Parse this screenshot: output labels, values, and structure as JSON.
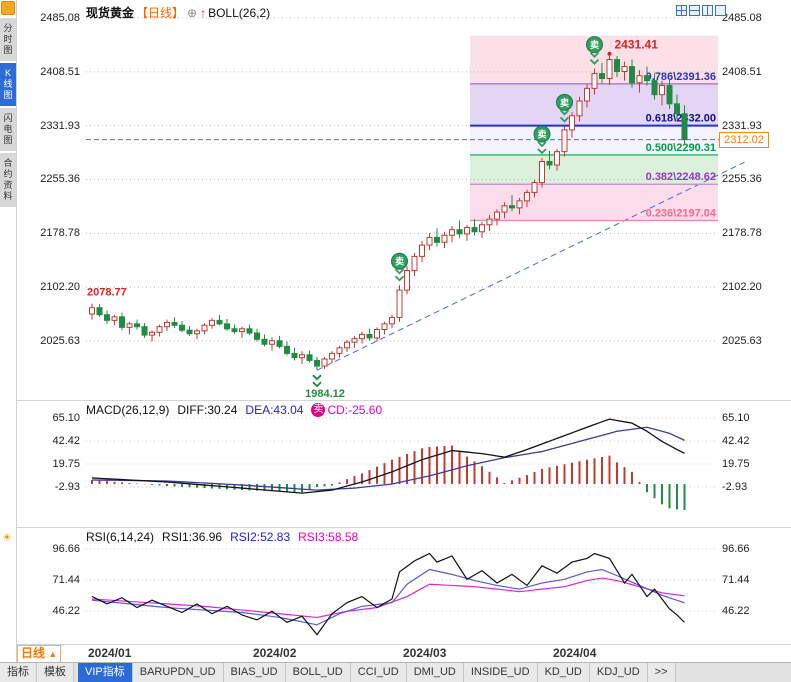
{
  "icons": {
    "add": "⊕",
    "flag": "↑",
    "sun": "☀",
    "triangle_up": "▲"
  },
  "sidebar": {
    "tabs": [
      {
        "label": "分时图",
        "active": false
      },
      {
        "label": "K线图",
        "active": true
      },
      {
        "label": "闪电图",
        "active": false
      },
      {
        "label": "合约资料",
        "active": false
      }
    ]
  },
  "header": {
    "symbol": "现货黄金",
    "period": "【日线】",
    "indicator": "BOLL(26,2)"
  },
  "footer": {
    "period_label": "日线",
    "tools": [
      "指标",
      "模板"
    ],
    "indicator_tabs": [
      {
        "label": "VIP指标",
        "active": true
      },
      {
        "label": "BARUPDN_UD",
        "active": false
      },
      {
        "label": "BIAS_UD",
        "active": false
      },
      {
        "label": "BOLL_UD",
        "active": false
      },
      {
        "label": "CCI_UD",
        "active": false
      },
      {
        "label": "DMI_UD",
        "active": false
      },
      {
        "label": "INSIDE_UD",
        "active": false
      },
      {
        "label": "KD_UD",
        "active": false
      },
      {
        "label": "KDJ_UD",
        "active": false
      }
    ],
    "more": ">>"
  },
  "chart_data": [
    {
      "type": "candlestick",
      "panel": "main",
      "symbol": "现货黄金",
      "period": "日线",
      "overlay": "BOLL(26,2)",
      "y_ticks": [
        2485.08,
        2408.51,
        2331.93,
        2255.36,
        2178.78,
        2102.2,
        2025.63
      ],
      "x_labels": [
        "2024/01",
        "2024/02",
        "2024/03",
        "2024/04"
      ],
      "month_start_indices": [
        0,
        22,
        42,
        62
      ],
      "candle_format": "[open,high,low,close]",
      "candles": [
        [
          2064,
          2078.77,
          2056,
          2073
        ],
        [
          2073,
          2078,
          2060,
          2063
        ],
        [
          2063,
          2069,
          2050,
          2055
        ],
        [
          2055,
          2063,
          2048,
          2060
        ],
        [
          2060,
          2066,
          2041,
          2045
        ],
        [
          2045,
          2053,
          2035,
          2050
        ],
        [
          2050,
          2056,
          2042,
          2046
        ],
        [
          2046,
          2051,
          2030,
          2034
        ],
        [
          2034,
          2041,
          2025,
          2038
        ],
        [
          2038,
          2049,
          2032,
          2046
        ],
        [
          2046,
          2056,
          2040,
          2052
        ],
        [
          2052,
          2059,
          2044,
          2048
        ],
        [
          2048,
          2054,
          2038,
          2041
        ],
        [
          2041,
          2047,
          2033,
          2036
        ],
        [
          2036,
          2043,
          2028,
          2040
        ],
        [
          2040,
          2051,
          2035,
          2048
        ],
        [
          2048,
          2058,
          2043,
          2055
        ],
        [
          2055,
          2063,
          2048,
          2050
        ],
        [
          2050,
          2057,
          2040,
          2043
        ],
        [
          2043,
          2049,
          2036,
          2039
        ],
        [
          2039,
          2046,
          2030,
          2043
        ],
        [
          2043,
          2049,
          2034,
          2037
        ],
        [
          2037,
          2043,
          2025,
          2028
        ],
        [
          2028,
          2035,
          2018,
          2021
        ],
        [
          2021,
          2031,
          2012,
          2026
        ],
        [
          2026,
          2033,
          2015,
          2018
        ],
        [
          2018,
          2025,
          2005,
          2008
        ],
        [
          2008,
          2016,
          1998,
          2002
        ],
        [
          2002,
          2011,
          1993,
          2006
        ],
        [
          2006,
          2012,
          1995,
          1998
        ],
        [
          1998,
          2003,
          1984.12,
          1990
        ],
        [
          1990,
          2003,
          1986,
          2000
        ],
        [
          2000,
          2011,
          1994,
          2008
        ],
        [
          2008,
          2019,
          2002,
          2016
        ],
        [
          2016,
          2027,
          2010,
          2024
        ],
        [
          2024,
          2033,
          2016,
          2029
        ],
        [
          2029,
          2039,
          2022,
          2035
        ],
        [
          2035,
          2043,
          2026,
          2030
        ],
        [
          2030,
          2045,
          2025,
          2042
        ],
        [
          2042,
          2053,
          2035,
          2050
        ],
        [
          2050,
          2063,
          2044,
          2059
        ],
        [
          2059,
          2105,
          2053,
          2098
        ],
        [
          2098,
          2132,
          2092,
          2126
        ],
        [
          2126,
          2151,
          2118,
          2146
        ],
        [
          2146,
          2168,
          2138,
          2162
        ],
        [
          2162,
          2179,
          2155,
          2173
        ],
        [
          2173,
          2186,
          2160,
          2166
        ],
        [
          2166,
          2181,
          2158,
          2176
        ],
        [
          2176,
          2189,
          2166,
          2184
        ],
        [
          2184,
          2197,
          2172,
          2178
        ],
        [
          2178,
          2191,
          2168,
          2187
        ],
        [
          2187,
          2199,
          2176,
          2181
        ],
        [
          2181,
          2195,
          2172,
          2191
        ],
        [
          2191,
          2205,
          2182,
          2199
        ],
        [
          2199,
          2213,
          2190,
          2209
        ],
        [
          2209,
          2223,
          2200,
          2218
        ],
        [
          2218,
          2233,
          2210,
          2215
        ],
        [
          2215,
          2229,
          2206,
          2225
        ],
        [
          2225,
          2241,
          2216,
          2237
        ],
        [
          2237,
          2255,
          2230,
          2251
        ],
        [
          2251,
          2286,
          2244,
          2281
        ],
        [
          2281,
          2296,
          2270,
          2276
        ],
        [
          2276,
          2299,
          2268,
          2295
        ],
        [
          2295,
          2331,
          2288,
          2326
        ],
        [
          2326,
          2351,
          2315,
          2346
        ],
        [
          2346,
          2373,
          2338,
          2367
        ],
        [
          2367,
          2391,
          2358,
          2385
        ],
        [
          2385,
          2413,
          2376,
          2406
        ],
        [
          2406,
          2421,
          2392,
          2399
        ],
        [
          2399,
          2431.41,
          2390,
          2426
        ],
        [
          2426,
          2431,
          2401,
          2409
        ],
        [
          2409,
          2423,
          2396,
          2416
        ],
        [
          2416,
          2426,
          2386,
          2393
        ],
        [
          2393,
          2411,
          2379,
          2403
        ],
        [
          2403,
          2416,
          2389,
          2396
        ],
        [
          2396,
          2406,
          2369,
          2376
        ],
        [
          2376,
          2396,
          2361,
          2389
        ],
        [
          2389,
          2399,
          2356,
          2363
        ],
        [
          2363,
          2376,
          2341,
          2349
        ],
        [
          2349,
          2361,
          2306,
          2312.02
        ]
      ],
      "sell_signal_indices": [
        41,
        60,
        63,
        67
      ],
      "sell_badge_char": "卖",
      "annotations": {
        "high": {
          "index": 69,
          "price": 2431.41
        },
        "low": {
          "index": 30,
          "price": 1984.12
        },
        "early_high": {
          "index": 0,
          "price": 2078.77
        },
        "current_price": 2312.02,
        "current_price_label": "2312.02"
      },
      "fib_top_price": 2460,
      "fib_levels": [
        {
          "ratio": "0.786",
          "price": 2391.36,
          "label": "0.786\\2391.36",
          "label_color": "#2a35b0",
          "line_color": "#9a6fd0",
          "band_color": "rgba(248,205,215,0.6)"
        },
        {
          "ratio": "0.618",
          "price": 2332.0,
          "label": "0.618\\2332.00",
          "label_color": "#111188",
          "line_color": "#2233cc",
          "band_color": "rgba(214,190,240,0.65)"
        },
        {
          "ratio": "0.500",
          "price": 2290.31,
          "label": "0.500\\2290.31",
          "label_color": "#00a040",
          "line_color": "#00aa44",
          "band_color": "rgba(232,228,250,0.45)"
        },
        {
          "ratio": "0.382",
          "price": 2248.62,
          "label": "0.382\\2248.62",
          "label_color": "#9933cc",
          "line_color": "#cc88cc",
          "band_color": "rgba(200,234,200,0.65)"
        },
        {
          "ratio": "0.236",
          "price": 2197.04,
          "label": "0.236\\2197.04",
          "label_color": "#ff6688",
          "line_color": "#ee88aa",
          "band_color": "rgba(250,205,226,0.7)"
        }
      ],
      "trendline": {
        "x1_index": 30,
        "price1": 1984.12,
        "x2_index": 87,
        "price2": 2280
      },
      "colors": {
        "up": "#c23b33",
        "down": "#1f8b45",
        "sell_badge": "#2f9e5f",
        "current_line": "#00a0a0",
        "trend": "#4466dd",
        "annotation_red": "#dd2222"
      }
    },
    {
      "type": "macd",
      "title": "MACD(26,12,9)",
      "labels": {
        "diff": "DIFF:30.24",
        "dea": "DEA:43.04",
        "macd": "CD:-25.60"
      },
      "badge": "卖",
      "axis": [
        "65.10",
        "42.42",
        "19.75",
        "-2.93"
      ],
      "diff_points": [
        [
          0,
          6
        ],
        [
          10,
          2
        ],
        [
          20,
          -4
        ],
        [
          28,
          -9
        ],
        [
          32,
          -6
        ],
        [
          36,
          2
        ],
        [
          40,
          12
        ],
        [
          44,
          24
        ],
        [
          48,
          33
        ],
        [
          52,
          30
        ],
        [
          55,
          26.5
        ],
        [
          58,
          34
        ],
        [
          62,
          45
        ],
        [
          66,
          56
        ],
        [
          69,
          64
        ],
        [
          72,
          60
        ],
        [
          74,
          52
        ],
        [
          76,
          42
        ],
        [
          78,
          34
        ],
        [
          79,
          30.24
        ]
      ],
      "dea_points": [
        [
          0,
          4
        ],
        [
          10,
          3
        ],
        [
          20,
          -1
        ],
        [
          30,
          -6
        ],
        [
          35,
          -4
        ],
        [
          40,
          0
        ],
        [
          45,
          8
        ],
        [
          50,
          18
        ],
        [
          55,
          26
        ],
        [
          60,
          32
        ],
        [
          65,
          42
        ],
        [
          70,
          52
        ],
        [
          74,
          56
        ],
        [
          77,
          50
        ],
        [
          79,
          43.04
        ]
      ],
      "colors": {
        "diff": "#111111",
        "dea": "#3a3aa0",
        "hist_pos": "#c23b33",
        "hist_neg": "#1f8b45",
        "badge": "#e6007e"
      }
    },
    {
      "type": "rsi",
      "title": "RSI(6,14,24)",
      "labels": {
        "rsi1": "RSI1:36.96",
        "rsi2": "RSI2:52.83",
        "rsi3": "RSI3:58.58"
      },
      "axis": [
        "96.66",
        "71.44",
        "46.22"
      ],
      "rsi1_points": [
        [
          0,
          58
        ],
        [
          2,
          52
        ],
        [
          4,
          57
        ],
        [
          6,
          49
        ],
        [
          8,
          55
        ],
        [
          10,
          50
        ],
        [
          12,
          45
        ],
        [
          14,
          52
        ],
        [
          16,
          44
        ],
        [
          18,
          50
        ],
        [
          20,
          43
        ],
        [
          22,
          39
        ],
        [
          24,
          46
        ],
        [
          26,
          37
        ],
        [
          28,
          42
        ],
        [
          30,
          27
        ],
        [
          32,
          44
        ],
        [
          34,
          53
        ],
        [
          36,
          58
        ],
        [
          38,
          49
        ],
        [
          40,
          56
        ],
        [
          41,
          78
        ],
        [
          43,
          87
        ],
        [
          45,
          93
        ],
        [
          46,
          86
        ],
        [
          48,
          91
        ],
        [
          50,
          72
        ],
        [
          52,
          79
        ],
        [
          54,
          69
        ],
        [
          56,
          76
        ],
        [
          58,
          67
        ],
        [
          60,
          83
        ],
        [
          62,
          77
        ],
        [
          64,
          86
        ],
        [
          66,
          89
        ],
        [
          67,
          93
        ],
        [
          69,
          89
        ],
        [
          71,
          69
        ],
        [
          72,
          76
        ],
        [
          74,
          58
        ],
        [
          75,
          64
        ],
        [
          77,
          48
        ],
        [
          78,
          43
        ],
        [
          79,
          36.96
        ]
      ],
      "rsi2_points": [
        [
          0,
          55
        ],
        [
          5,
          52
        ],
        [
          10,
          49
        ],
        [
          15,
          47
        ],
        [
          20,
          45
        ],
        [
          25,
          41
        ],
        [
          30,
          35
        ],
        [
          33,
          44
        ],
        [
          36,
          50
        ],
        [
          40,
          53
        ],
        [
          42,
          68
        ],
        [
          45,
          80
        ],
        [
          48,
          76
        ],
        [
          51,
          71
        ],
        [
          54,
          67
        ],
        [
          57,
          64
        ],
        [
          60,
          69
        ],
        [
          63,
          72
        ],
        [
          66,
          78
        ],
        [
          68,
          80
        ],
        [
          70,
          75
        ],
        [
          73,
          67
        ],
        [
          76,
          59
        ],
        [
          79,
          52.83
        ]
      ],
      "rsi3_points": [
        [
          0,
          56
        ],
        [
          5,
          54
        ],
        [
          10,
          52
        ],
        [
          15,
          50
        ],
        [
          20,
          47
        ],
        [
          25,
          44
        ],
        [
          30,
          41
        ],
        [
          34,
          46
        ],
        [
          38,
          49
        ],
        [
          42,
          58
        ],
        [
          45,
          68
        ],
        [
          48,
          67
        ],
        [
          51,
          66
        ],
        [
          54,
          64
        ],
        [
          57,
          62
        ],
        [
          60,
          64
        ],
        [
          63,
          66
        ],
        [
          66,
          71
        ],
        [
          68,
          73
        ],
        [
          70,
          71
        ],
        [
          73,
          66
        ],
        [
          76,
          61
        ],
        [
          79,
          58.58
        ]
      ],
      "colors": {
        "rsi1": "#111111",
        "rsi2": "#5b5bd6",
        "rsi3": "#d928d9"
      }
    }
  ]
}
